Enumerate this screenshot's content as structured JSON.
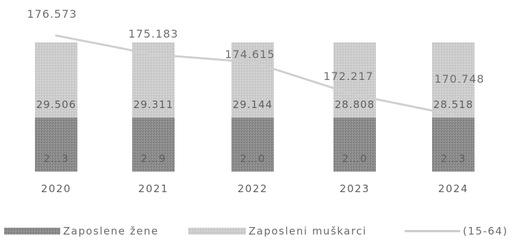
{
  "chart_data": {
    "type": "bar",
    "stacked": true,
    "categories": [
      "2020",
      "2021",
      "2022",
      "2023",
      "2024"
    ],
    "series": [
      {
        "name": "Zaposlene žene",
        "values": [
          null,
          null,
          null,
          null,
          null
        ],
        "labels": [
          "2…3",
          "2…9",
          "2…0",
          "2…0",
          "2…3"
        ],
        "color": "#8a8a8a"
      },
      {
        "name": "Zaposleni muškarci",
        "values": [
          29.506,
          29.311,
          29.144,
          28.808,
          28.518
        ],
        "labels": [
          "29.506",
          "29.311",
          "29.144",
          "28.808",
          "28.518"
        ],
        "color": "#c8c8c8"
      }
    ],
    "line_series": {
      "name": "(15-64)",
      "values": [
        176.573,
        175.183,
        174.615,
        172.217,
        170.748
      ],
      "labels": [
        "176.573",
        "175.183",
        "174.615",
        "172.217",
        "170.748"
      ],
      "color": "#cfcfcf"
    },
    "legend_position": "bottom",
    "grid": false
  }
}
